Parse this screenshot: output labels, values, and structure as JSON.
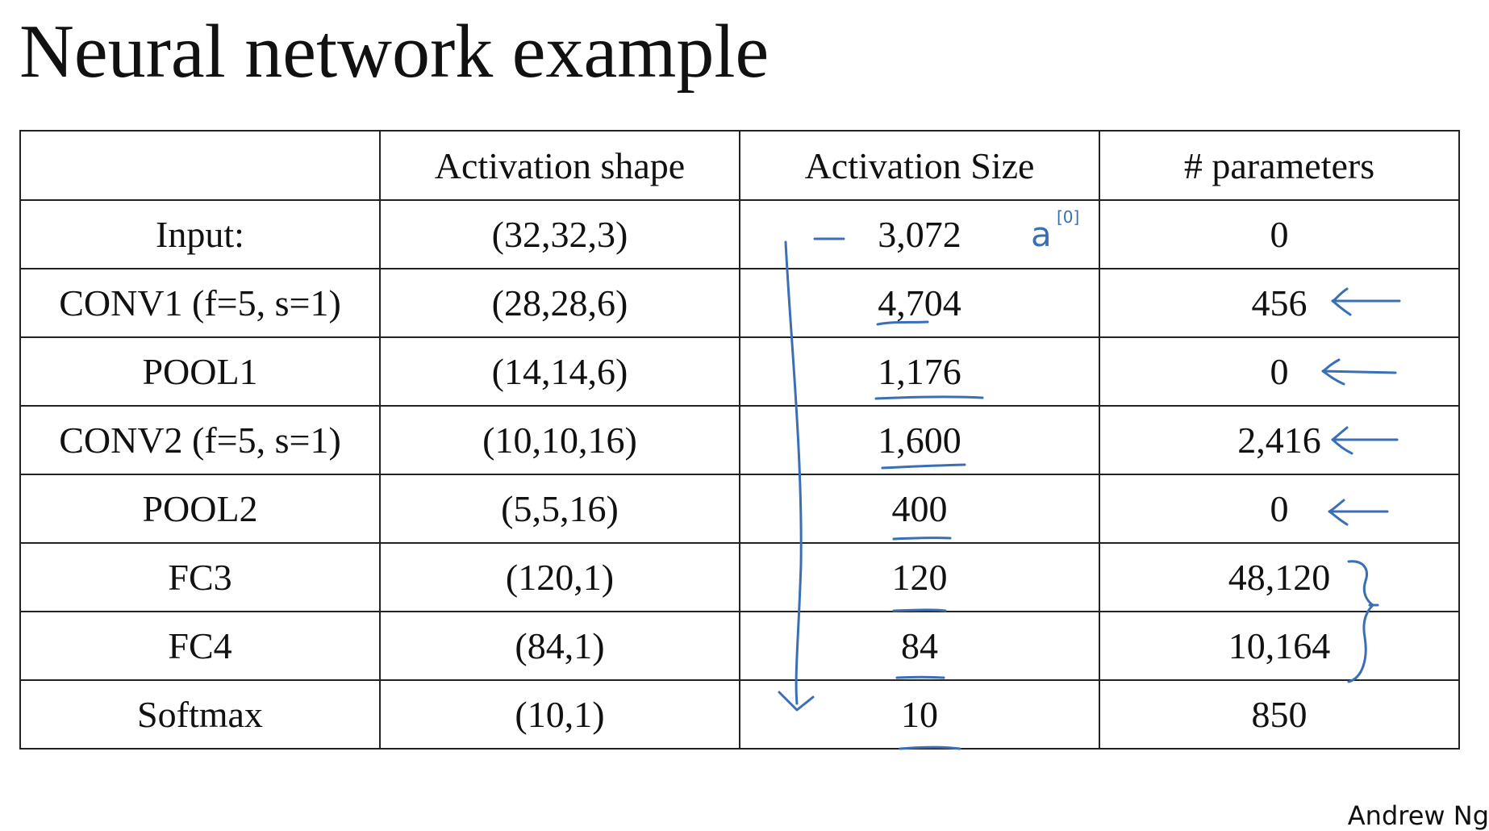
{
  "slide": {
    "title": "Neural network example",
    "author": "Andrew Ng"
  },
  "table": {
    "headers": [
      "",
      "Activation shape",
      "Activation Size",
      "# parameters"
    ],
    "rows": [
      {
        "layer": "Input:",
        "shape": "(32,32,3)",
        "size": "3,072",
        "params": "0"
      },
      {
        "layer": "CONV1 (f=5, s=1)",
        "shape": "(28,28,6)",
        "size": "4,704",
        "params": "456"
      },
      {
        "layer": "POOL1",
        "shape": "(14,14,6)",
        "size": "1,176",
        "params": "0"
      },
      {
        "layer": "CONV2  (f=5, s=1)",
        "shape": "(10,10,16)",
        "size": "1,600",
        "params": "2,416"
      },
      {
        "layer": "POOL2",
        "shape": "(5,5,16)",
        "size": "400",
        "params": "0"
      },
      {
        "layer": "FC3",
        "shape": "(120,1)",
        "size": "120",
        "params": "48,120"
      },
      {
        "layer": "FC4",
        "shape": "(84,1)",
        "size": "84",
        "params": "10,164"
      },
      {
        "layer": "Softmax",
        "shape": "(10,1)",
        "size": "10",
        "params": "850"
      }
    ]
  },
  "annotations": {
    "input_note": "a",
    "input_note_superscript": "[0]",
    "ink_color": "#3a6fb5"
  }
}
